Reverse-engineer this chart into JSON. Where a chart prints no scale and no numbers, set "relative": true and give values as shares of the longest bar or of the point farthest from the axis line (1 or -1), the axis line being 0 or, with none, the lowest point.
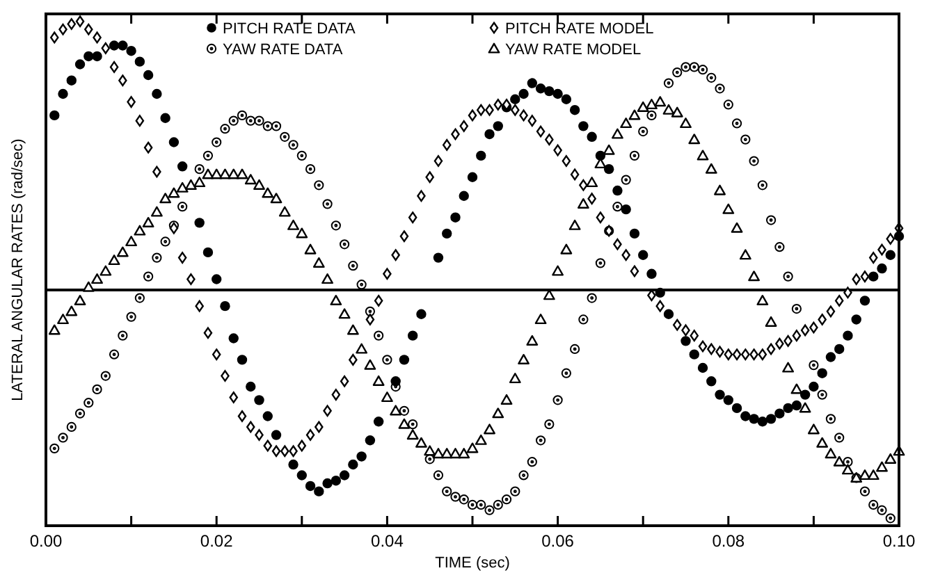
{
  "chart_data": {
    "type": "scatter",
    "relative": true,
    "xlabel": "TIME (sec)",
    "ylabel": "LATERAL ANGULAR RATES (rad/sec)",
    "xlim": [
      0,
      0.1
    ],
    "xticks": [
      {
        "value": 0,
        "label": "0.00"
      },
      {
        "value": 0.01,
        "label": null
      },
      {
        "value": 0.02,
        "label": "0.02"
      },
      {
        "value": 0.03,
        "label": null
      },
      {
        "value": 0.04,
        "label": "0.04"
      },
      {
        "value": 0.05,
        "label": null
      },
      {
        "value": 0.06,
        "label": "0.06"
      },
      {
        "value": 0.07,
        "label": null
      },
      {
        "value": 0.08,
        "label": "0.08"
      },
      {
        "value": 0.09,
        "label": null
      },
      {
        "value": 0.1,
        "label": "0.10"
      }
    ],
    "legend": "top",
    "ref_lines": [
      {
        "axis": "y",
        "value": 0,
        "color": "#000000"
      }
    ],
    "series": [
      {
        "name": "PITCH RATE DATA",
        "color": "#000000",
        "marker": "circle",
        "x": [
          0.001,
          0.002,
          0.003,
          0.004,
          0.005,
          0.006,
          0.008,
          0.009,
          0.01,
          0.011,
          0.012,
          0.013,
          0.014,
          0.015,
          0.016,
          0.018,
          0.019,
          0.02,
          0.021,
          0.022,
          0.023,
          0.024,
          0.025,
          0.026,
          0.027,
          0.029,
          0.03,
          0.031,
          0.032,
          0.033,
          0.034,
          0.035,
          0.036,
          0.037,
          0.038,
          0.039,
          0.041,
          0.042,
          0.043,
          0.044,
          0.046,
          0.047,
          0.048,
          0.049,
          0.05,
          0.051,
          0.052,
          0.053,
          0.054,
          0.055,
          0.056,
          0.057,
          0.058,
          0.059,
          0.06,
          0.061,
          0.062,
          0.063,
          0.064,
          0.065,
          0.066,
          0.067,
          0.068,
          0.069,
          0.07,
          0.071,
          0.072,
          0.073,
          0.075,
          0.076,
          0.077,
          0.078,
          0.079,
          0.08,
          0.081,
          0.082,
          0.083,
          0.084,
          0.085,
          0.086,
          0.087,
          0.088,
          0.089,
          0.09,
          0.091,
          0.092,
          0.093,
          0.094,
          0.095,
          0.096,
          0.097,
          0.098,
          0.099,
          0.1
        ],
        "values": [
          0.65,
          0.73,
          0.78,
          0.84,
          0.87,
          0.87,
          0.91,
          0.91,
          0.89,
          0.85,
          0.8,
          0.73,
          0.64,
          0.55,
          0.46,
          0.25,
          0.14,
          0.04,
          -0.06,
          -0.18,
          -0.26,
          -0.36,
          -0.41,
          -0.47,
          -0.54,
          -0.65,
          -0.69,
          -0.73,
          -0.75,
          -0.72,
          -0.71,
          -0.69,
          -0.65,
          -0.62,
          -0.56,
          -0.49,
          -0.34,
          -0.26,
          -0.17,
          -0.09,
          0.12,
          0.21,
          0.27,
          0.35,
          0.42,
          0.5,
          0.58,
          0.61,
          0.68,
          0.71,
          0.73,
          0.77,
          0.75,
          0.74,
          0.73,
          0.71,
          0.67,
          0.61,
          0.57,
          0.5,
          0.45,
          0.37,
          0.3,
          0.21,
          0.13,
          0.06,
          -0.01,
          -0.09,
          -0.19,
          -0.24,
          -0.29,
          -0.34,
          -0.39,
          -0.41,
          -0.44,
          -0.47,
          -0.48,
          -0.49,
          -0.48,
          -0.46,
          -0.44,
          -0.43,
          -0.39,
          -0.36,
          -0.31,
          -0.25,
          -0.22,
          -0.17,
          -0.11,
          -0.04,
          0.05,
          0.08,
          0.13,
          0.2
        ]
      },
      {
        "name": "YAW RATE DATA",
        "color": "#000000",
        "marker": "circle",
        "x": [
          0.001,
          0.002,
          0.003,
          0.004,
          0.005,
          0.006,
          0.007,
          0.008,
          0.009,
          0.01,
          0.011,
          0.012,
          0.013,
          0.014,
          0.015,
          0.016,
          0.018,
          0.019,
          0.02,
          0.021,
          0.022,
          0.023,
          0.024,
          0.025,
          0.026,
          0.027,
          0.028,
          0.029,
          0.03,
          0.031,
          0.032,
          0.033,
          0.034,
          0.035,
          0.036,
          0.037,
          0.038,
          0.039,
          0.04,
          0.041,
          0.042,
          0.043,
          0.045,
          0.046,
          0.047,
          0.048,
          0.049,
          0.05,
          0.051,
          0.052,
          0.053,
          0.054,
          0.055,
          0.056,
          0.057,
          0.058,
          0.059,
          0.06,
          0.061,
          0.062,
          0.063,
          0.064,
          0.065,
          0.066,
          0.067,
          0.068,
          0.069,
          0.07,
          0.071,
          0.073,
          0.074,
          0.075,
          0.076,
          0.077,
          0.078,
          0.079,
          0.08,
          0.081,
          0.082,
          0.083,
          0.084,
          0.085,
          0.086,
          0.087,
          0.088,
          0.09,
          0.091,
          0.092,
          0.093,
          0.094,
          0.095,
          0.096,
          0.097,
          0.098,
          0.099
        ],
        "values": [
          -0.59,
          -0.55,
          -0.51,
          -0.46,
          -0.42,
          -0.37,
          -0.32,
          -0.24,
          -0.17,
          -0.1,
          -0.03,
          0.05,
          0.12,
          0.18,
          0.24,
          0.31,
          0.45,
          0.5,
          0.55,
          0.6,
          0.63,
          0.65,
          0.63,
          0.63,
          0.61,
          0.61,
          0.57,
          0.54,
          0.5,
          0.45,
          0.39,
          0.32,
          0.24,
          0.17,
          0.09,
          0.02,
          -0.08,
          -0.17,
          -0.26,
          -0.36,
          -0.45,
          -0.5,
          -0.63,
          -0.69,
          -0.75,
          -0.77,
          -0.78,
          -0.8,
          -0.8,
          -0.82,
          -0.8,
          -0.78,
          -0.75,
          -0.69,
          -0.64,
          -0.56,
          -0.5,
          -0.41,
          -0.31,
          -0.22,
          -0.11,
          -0.03,
          0.1,
          0.22,
          0.31,
          0.41,
          0.5,
          0.59,
          0.65,
          0.77,
          0.81,
          0.83,
          0.83,
          0.82,
          0.79,
          0.75,
          0.69,
          0.62,
          0.56,
          0.48,
          0.39,
          0.26,
          0.16,
          0.05,
          -0.07,
          -0.28,
          -0.39,
          -0.48,
          -0.55,
          -0.64,
          -0.7,
          -0.75,
          -0.8,
          -0.82,
          -0.85
        ]
      },
      {
        "name": "PITCH RATE MODEL",
        "color": "#000000",
        "marker": "diamond",
        "x": [
          0.001,
          0.002,
          0.003,
          0.004,
          0.005,
          0.006,
          0.007,
          0.008,
          0.009,
          0.01,
          0.011,
          0.012,
          0.013,
          0.015,
          0.016,
          0.017,
          0.018,
          0.019,
          0.02,
          0.021,
          0.022,
          0.023,
          0.024,
          0.025,
          0.026,
          0.027,
          0.028,
          0.029,
          0.03,
          0.031,
          0.032,
          0.033,
          0.034,
          0.035,
          0.036,
          0.038,
          0.039,
          0.04,
          0.041,
          0.042,
          0.043,
          0.044,
          0.045,
          0.046,
          0.047,
          0.048,
          0.049,
          0.05,
          0.051,
          0.052,
          0.053,
          0.054,
          0.055,
          0.056,
          0.057,
          0.058,
          0.059,
          0.06,
          0.061,
          0.062,
          0.063,
          0.064,
          0.065,
          0.066,
          0.067,
          0.068,
          0.069,
          0.071,
          0.072,
          0.074,
          0.075,
          0.076,
          0.077,
          0.078,
          0.079,
          0.08,
          0.081,
          0.082,
          0.083,
          0.084,
          0.085,
          0.086,
          0.087,
          0.088,
          0.089,
          0.09,
          0.091,
          0.092,
          0.093,
          0.094,
          0.095,
          0.096,
          0.097,
          0.098,
          0.099,
          0.1
        ],
        "values": [
          0.94,
          0.97,
          0.99,
          1.0,
          0.97,
          0.94,
          0.9,
          0.83,
          0.78,
          0.7,
          0.63,
          0.53,
          0.44,
          0.23,
          0.12,
          0.04,
          -0.06,
          -0.16,
          -0.24,
          -0.32,
          -0.4,
          -0.47,
          -0.51,
          -0.54,
          -0.58,
          -0.6,
          -0.6,
          -0.6,
          -0.58,
          -0.54,
          -0.51,
          -0.45,
          -0.39,
          -0.34,
          -0.26,
          -0.11,
          -0.04,
          0.06,
          0.13,
          0.2,
          0.27,
          0.35,
          0.42,
          0.48,
          0.54,
          0.58,
          0.61,
          0.65,
          0.67,
          0.67,
          0.69,
          0.69,
          0.67,
          0.65,
          0.63,
          0.59,
          0.56,
          0.52,
          0.48,
          0.43,
          0.39,
          0.34,
          0.27,
          0.22,
          0.17,
          0.13,
          0.07,
          -0.02,
          -0.06,
          -0.13,
          -0.15,
          -0.17,
          -0.21,
          -0.22,
          -0.23,
          -0.24,
          -0.24,
          -0.24,
          -0.24,
          -0.24,
          -0.22,
          -0.2,
          -0.19,
          -0.17,
          -0.15,
          -0.14,
          -0.11,
          -0.08,
          -0.04,
          -0.01,
          0.04,
          0.05,
          0.12,
          0.15,
          0.19,
          0.23
        ]
      },
      {
        "name": "YAW RATE MODEL",
        "color": "#000000",
        "marker": "triangle",
        "x": [
          0.001,
          0.002,
          0.003,
          0.004,
          0.005,
          0.006,
          0.007,
          0.008,
          0.009,
          0.01,
          0.011,
          0.012,
          0.013,
          0.014,
          0.015,
          0.016,
          0.017,
          0.018,
          0.019,
          0.02,
          0.021,
          0.022,
          0.023,
          0.024,
          0.025,
          0.026,
          0.027,
          0.028,
          0.029,
          0.03,
          0.031,
          0.032,
          0.033,
          0.034,
          0.035,
          0.036,
          0.037,
          0.038,
          0.039,
          0.04,
          0.041,
          0.042,
          0.043,
          0.044,
          0.045,
          0.046,
          0.047,
          0.048,
          0.049,
          0.05,
          0.051,
          0.052,
          0.053,
          0.054,
          0.055,
          0.056,
          0.057,
          0.058,
          0.059,
          0.06,
          0.061,
          0.062,
          0.063,
          0.064,
          0.065,
          0.066,
          0.067,
          0.068,
          0.069,
          0.07,
          0.071,
          0.072,
          0.073,
          0.074,
          0.075,
          0.076,
          0.077,
          0.078,
          0.079,
          0.08,
          0.081,
          0.082,
          0.083,
          0.084,
          0.085,
          0.087,
          0.088,
          0.089,
          0.09,
          0.091,
          0.092,
          0.093,
          0.094,
          0.095,
          0.096,
          0.097,
          0.098,
          0.099,
          0.1
        ],
        "values": [
          -0.15,
          -0.11,
          -0.08,
          -0.04,
          0.01,
          0.04,
          0.07,
          0.11,
          0.14,
          0.18,
          0.22,
          0.25,
          0.29,
          0.34,
          0.36,
          0.38,
          0.39,
          0.4,
          0.43,
          0.43,
          0.43,
          0.43,
          0.43,
          0.41,
          0.39,
          0.36,
          0.34,
          0.29,
          0.24,
          0.21,
          0.15,
          0.1,
          0.04,
          -0.04,
          -0.09,
          -0.15,
          -0.22,
          -0.28,
          -0.34,
          -0.4,
          -0.45,
          -0.5,
          -0.54,
          -0.57,
          -0.6,
          -0.61,
          -0.61,
          -0.61,
          -0.61,
          -0.59,
          -0.56,
          -0.52,
          -0.46,
          -0.41,
          -0.33,
          -0.26,
          -0.19,
          -0.11,
          -0.02,
          0.07,
          0.15,
          0.24,
          0.32,
          0.4,
          0.47,
          0.52,
          0.58,
          0.62,
          0.65,
          0.68,
          0.69,
          0.7,
          0.67,
          0.66,
          0.62,
          0.56,
          0.5,
          0.45,
          0.37,
          0.3,
          0.23,
          0.13,
          0.05,
          -0.04,
          -0.12,
          -0.29,
          -0.37,
          -0.44,
          -0.52,
          -0.57,
          -0.61,
          -0.64,
          -0.67,
          -0.7,
          -0.69,
          -0.69,
          -0.66,
          -0.63,
          -0.6
        ]
      }
    ]
  }
}
